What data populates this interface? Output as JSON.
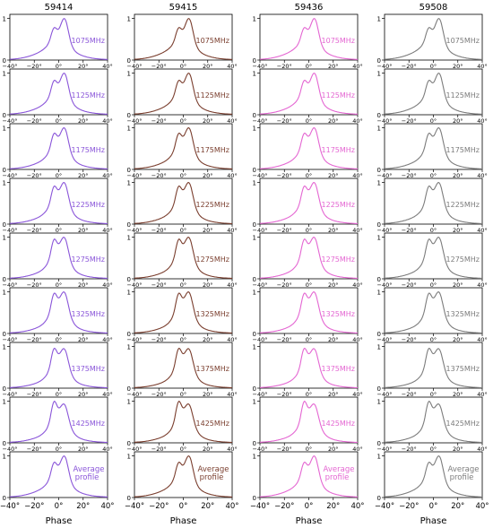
{
  "chart_data": {
    "type": "line",
    "grid": "profile panels: rows = frequency channels (plus average profile), columns = epochs",
    "xlabel": "Phase",
    "xlim": [
      -40,
      40
    ],
    "ylim": [
      0,
      1.1
    ],
    "xticks": [
      "−40°",
      "−20°",
      "0°",
      "20°",
      "40°"
    ],
    "yticks": [
      "0",
      "1"
    ],
    "columns": [
      {
        "title": "59414",
        "color": "#8a55d9"
      },
      {
        "title": "59415",
        "color": "#7a3e2e"
      },
      {
        "title": "59436",
        "color": "#e466d2"
      },
      {
        "title": "59508",
        "color": "#7c7c7c"
      }
    ],
    "rows": [
      {
        "label": "1075MHz",
        "leading_peak": 0.5,
        "trailing_peak": 1.0,
        "bridge": 0.38
      },
      {
        "label": "1125MHz",
        "leading_peak": 0.58,
        "trailing_peak": 1.0,
        "bridge": 0.44
      },
      {
        "label": "1175MHz",
        "leading_peak": 0.66,
        "trailing_peak": 1.0,
        "bridge": 0.52
      },
      {
        "label": "1225MHz",
        "leading_peak": 0.75,
        "trailing_peak": 1.0,
        "bridge": 0.6
      },
      {
        "label": "1275MHz",
        "leading_peak": 0.84,
        "trailing_peak": 1.0,
        "bridge": 0.66
      },
      {
        "label": "1325MHz",
        "leading_peak": 0.88,
        "trailing_peak": 1.0,
        "bridge": 0.7
      },
      {
        "label": "1375MHz",
        "leading_peak": 0.94,
        "trailing_peak": 0.96,
        "bridge": 0.72
      },
      {
        "label": "1425MHz",
        "leading_peak": 1.0,
        "trailing_peak": 0.88,
        "bridge": 0.72
      },
      {
        "label": "Average profile",
        "leading_peak": 0.62,
        "trailing_peak": 1.0,
        "bridge": 0.46
      }
    ],
    "profile_shape": {
      "leading_peak_phase_deg": -4,
      "trailing_peak_phase_deg": 5,
      "wing_left_deg": -40,
      "wing_right_deg": 40
    }
  }
}
